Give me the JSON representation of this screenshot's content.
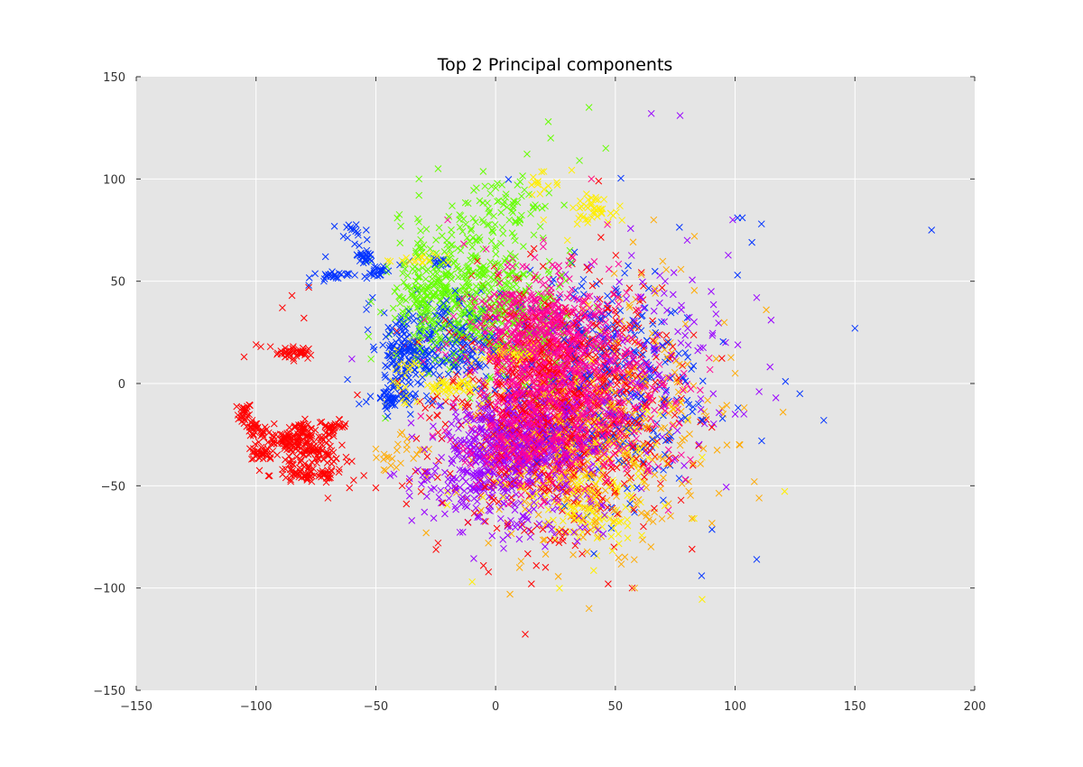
{
  "chart_data": {
    "type": "scatter",
    "title": "Top 2 Principal components",
    "xlabel": "",
    "ylabel": "",
    "xlim": [
      -150,
      200
    ],
    "ylim": [
      -150,
      150
    ],
    "xticks": [
      -150,
      -100,
      -50,
      0,
      50,
      100,
      150,
      200
    ],
    "yticks": [
      -150,
      -100,
      -50,
      0,
      50,
      100,
      150
    ],
    "xtick_labels": [
      "−150",
      "−100",
      "−50",
      "0",
      "50",
      "100",
      "150",
      "200"
    ],
    "ytick_labels": [
      "−150",
      "−100",
      "−50",
      "0",
      "50",
      "100",
      "150"
    ],
    "grid": true,
    "legend": "none",
    "marker": "x",
    "background_color": "#e5e5e5",
    "series": [
      {
        "color": "#ff0000",
        "clusters": [
          {
            "cx": -83,
            "cy": 15,
            "sx": 4,
            "sy": 1.5,
            "n": 40
          },
          {
            "cx": -105,
            "cy": -15,
            "sx": 1.5,
            "sy": 3,
            "n": 25
          },
          {
            "cx": -100,
            "cy": -23,
            "sx": 2.5,
            "sy": 2,
            "n": 30
          },
          {
            "cx": -98,
            "cy": -34,
            "sx": 2,
            "sy": 2,
            "n": 30
          },
          {
            "cx": -88,
            "cy": -27,
            "sx": 5,
            "sy": 2,
            "n": 45
          },
          {
            "cx": -82,
            "cy": -22,
            "sx": 3,
            "sy": 2,
            "n": 30
          },
          {
            "cx": -78,
            "cy": -29,
            "sx": 5,
            "sy": 4,
            "n": 60
          },
          {
            "cx": -68,
            "cy": -21,
            "sx": 3,
            "sy": 1.5,
            "n": 30
          },
          {
            "cx": -75,
            "cy": -37,
            "sx": 7,
            "sy": 4,
            "n": 60
          },
          {
            "cx": -78,
            "cy": -45,
            "sx": 8,
            "sy": 2,
            "n": 55
          },
          {
            "cx": -88,
            "cy": -38,
            "sx": 4,
            "sy": 5,
            "n": 15
          },
          {
            "cx": 25,
            "cy": -10,
            "sx": 22,
            "sy": 28,
            "n": 1100
          }
        ],
        "points": [
          [
            -85,
            43
          ],
          [
            -80,
            32
          ],
          [
            -89,
            37
          ],
          [
            -100,
            19
          ],
          [
            -98,
            18
          ],
          [
            -94,
            18
          ],
          [
            -105,
            13
          ],
          [
            -78,
            47
          ],
          [
            -93,
            -33
          ],
          [
            -70,
            -56
          ],
          [
            -60,
            -38
          ],
          [
            -55,
            -45
          ],
          [
            -50,
            -51
          ],
          [
            -61,
            -51
          ],
          [
            -39,
            -50
          ],
          [
            -36,
            -48
          ],
          [
            -24,
            -78
          ],
          [
            17,
            -89
          ],
          [
            47,
            -98
          ],
          [
            57,
            -100
          ],
          [
            82,
            -81
          ],
          [
            43,
            99
          ]
        ]
      },
      {
        "color": "#0033ff",
        "clusters": [
          {
            "cx": -22,
            "cy": 20,
            "sx": 12,
            "sy": 12,
            "n": 220
          },
          {
            "cx": -37,
            "cy": 13,
            "sx": 5,
            "sy": 11,
            "n": 120
          },
          {
            "cx": -43,
            "cy": -7,
            "sx": 4,
            "sy": 2,
            "n": 35
          },
          {
            "cx": -23,
            "cy": 59,
            "sx": 2,
            "sy": 1,
            "n": 15
          },
          {
            "cx": -55,
            "cy": 62,
            "sx": 2,
            "sy": 2,
            "n": 25
          },
          {
            "cx": -50,
            "cy": 55,
            "sx": 2.5,
            "sy": 1.5,
            "n": 20
          },
          {
            "cx": -68,
            "cy": 53,
            "sx": 3.5,
            "sy": 1,
            "n": 25
          },
          {
            "cx": -60,
            "cy": 73,
            "sx": 3,
            "sy": 2.5,
            "n": 15
          },
          {
            "cx": 45,
            "cy": 0,
            "sx": 20,
            "sy": 28,
            "n": 320
          }
        ],
        "points": [
          [
            -78,
            48
          ],
          [
            -71,
            62
          ],
          [
            -54,
            75
          ],
          [
            -40,
            58
          ],
          [
            -36,
            60
          ],
          [
            101,
            81
          ],
          [
            103,
            81
          ],
          [
            111,
            78
          ],
          [
            107,
            69
          ],
          [
            101,
            53
          ],
          [
            150,
            27
          ],
          [
            182,
            75
          ],
          [
            121,
            1
          ],
          [
            127,
            -5
          ],
          [
            137,
            -18
          ],
          [
            109,
            -86
          ],
          [
            86,
            -94
          ],
          [
            70,
            -57
          ],
          [
            58,
            -63
          ],
          [
            -45,
            -16
          ],
          [
            -46,
            3
          ],
          [
            -54,
            -9
          ],
          [
            -57,
            -10
          ]
        ]
      },
      {
        "color": "#66ff00",
        "clusters": [
          {
            "cx": -12,
            "cy": 45,
            "sx": 14,
            "sy": 17,
            "n": 420
          },
          {
            "cx": 5,
            "cy": 85,
            "sx": 10,
            "sy": 10,
            "n": 80
          },
          {
            "cx": -28,
            "cy": 35,
            "sx": 8,
            "sy": 12,
            "n": 100
          },
          {
            "cx": 15,
            "cy": 30,
            "sx": 12,
            "sy": 18,
            "n": 100
          }
        ],
        "points": [
          [
            39,
            135
          ],
          [
            22,
            128
          ],
          [
            23,
            120
          ],
          [
            35,
            109
          ],
          [
            46,
            115
          ],
          [
            -32,
            100
          ],
          [
            -24,
            105
          ],
          [
            -32,
            92
          ],
          [
            -32,
            79
          ],
          [
            -52,
            40
          ],
          [
            -48,
            35
          ],
          [
            -42,
            32
          ],
          [
            -53,
            23
          ],
          [
            -52,
            12
          ],
          [
            -46,
            -17
          ]
        ]
      },
      {
        "color": "#ffee00",
        "clusters": [
          {
            "cx": 40,
            "cy": 85,
            "sx": 4,
            "sy": 3,
            "n": 40
          },
          {
            "cx": 20,
            "cy": 98,
            "sx": 5,
            "sy": 3,
            "n": 15
          },
          {
            "cx": -30,
            "cy": 60,
            "sx": 5,
            "sy": 1.5,
            "n": 20
          },
          {
            "cx": 8,
            "cy": 15,
            "sx": 7,
            "sy": 2,
            "n": 60
          },
          {
            "cx": -18,
            "cy": -2,
            "sx": 8,
            "sy": 2,
            "n": 50
          },
          {
            "cx": 35,
            "cy": -30,
            "sx": 20,
            "sy": 25,
            "n": 220
          },
          {
            "cx": 38,
            "cy": -65,
            "sx": 10,
            "sy": 8,
            "n": 70
          },
          {
            "cx": -38,
            "cy": 5,
            "sx": 4,
            "sy": 8,
            "n": 30
          }
        ],
        "points": [
          [
            -45,
            60
          ],
          [
            40,
            100
          ],
          [
            20,
            80
          ],
          [
            30,
            70
          ]
        ]
      },
      {
        "color": "#ffaa00",
        "clusters": [
          {
            "cx": 40,
            "cy": -40,
            "sx": 22,
            "sy": 20,
            "n": 250
          },
          {
            "cx": 70,
            "cy": 10,
            "sx": 15,
            "sy": 25,
            "n": 80
          },
          {
            "cx": -40,
            "cy": -35,
            "sx": 6,
            "sy": 8,
            "n": 25
          }
        ],
        "points": [
          [
            6,
            -103
          ],
          [
            39,
            -110
          ],
          [
            58,
            -100
          ],
          [
            110,
            -56
          ],
          [
            108,
            -48
          ],
          [
            102,
            -30
          ],
          [
            113,
            36
          ],
          [
            120,
            -14
          ],
          [
            66,
            80
          ],
          [
            83,
            72
          ],
          [
            -3,
            -78
          ],
          [
            -29,
            -73
          ],
          [
            95,
            -15
          ],
          [
            100,
            5
          ],
          [
            82,
            -66
          ],
          [
            10,
            -90
          ]
        ]
      },
      {
        "color": "#9900ff",
        "clusters": [
          {
            "cx": 10,
            "cy": -30,
            "sx": 15,
            "sy": 12,
            "n": 500
          },
          {
            "cx": -10,
            "cy": -45,
            "sx": 12,
            "sy": 12,
            "n": 150
          },
          {
            "cx": 60,
            "cy": 10,
            "sx": 20,
            "sy": 25,
            "n": 150
          },
          {
            "cx": 20,
            "cy": -70,
            "sx": 15,
            "sy": 6,
            "n": 40
          }
        ],
        "points": [
          [
            65,
            132
          ],
          [
            77,
            131
          ],
          [
            99,
            80
          ],
          [
            90,
            45
          ],
          [
            115,
            31
          ],
          [
            109,
            42
          ],
          [
            117,
            -7
          ],
          [
            110,
            -4
          ],
          [
            96,
            20
          ],
          [
            92,
            34
          ],
          [
            80,
            70
          ],
          [
            100,
            -15
          ],
          [
            -35,
            -67
          ],
          [
            -44,
            -45
          ],
          [
            -60,
            12
          ]
        ]
      },
      {
        "color": "#ff0099",
        "clusters": [
          {
            "cx": 25,
            "cy": 5,
            "sx": 18,
            "sy": 22,
            "n": 750
          },
          {
            "cx": 15,
            "cy": 30,
            "sx": 12,
            "sy": 12,
            "n": 200
          },
          {
            "cx": 50,
            "cy": -20,
            "sx": 15,
            "sy": 15,
            "n": 100
          },
          {
            "cx": 10,
            "cy": -30,
            "sx": 12,
            "sy": 12,
            "n": 150
          }
        ],
        "points": [
          [
            40,
            100
          ],
          [
            20,
            70
          ],
          [
            -20,
            80
          ]
        ]
      }
    ]
  }
}
